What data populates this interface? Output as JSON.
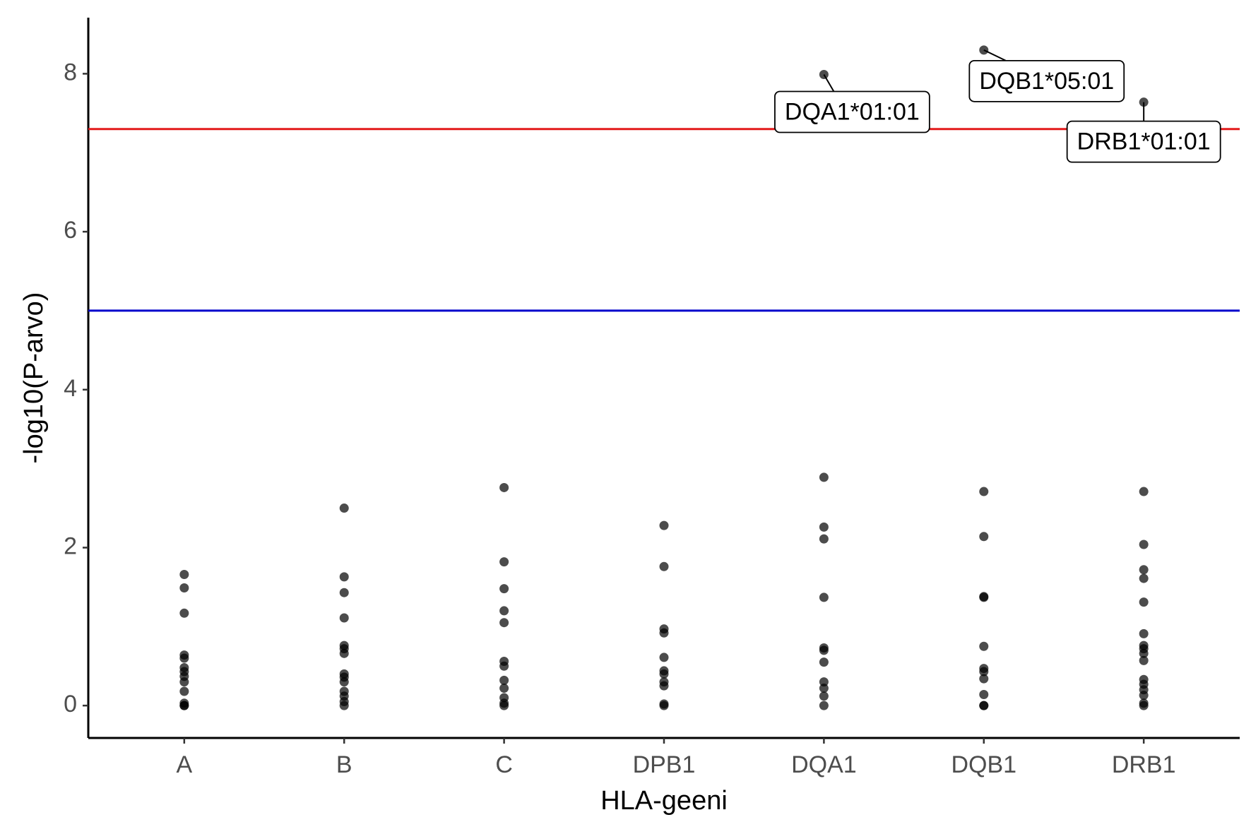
{
  "chart_data": {
    "type": "strip",
    "x_label": "HLA-geeni",
    "y_label": "-log10(P-arvo)",
    "categories": [
      "A",
      "B",
      "C",
      "DPB1",
      "DQA1",
      "DQB1",
      "DRB1"
    ],
    "values": [
      [
        1.66,
        1.49,
        1.17,
        0.64,
        0.6,
        0.48,
        0.43,
        0.37,
        0.3,
        0.18,
        0.03,
        0,
        0
      ],
      [
        2.5,
        1.63,
        1.43,
        1.11,
        0.76,
        0.72,
        0.66,
        0.4,
        0.36,
        0.3,
        0.18,
        0.12,
        0.05,
        0
      ],
      [
        2.76,
        1.82,
        1.48,
        1.2,
        1.05,
        0.56,
        0.5,
        0.32,
        0.22,
        0.1,
        0.03,
        0
      ],
      [
        2.28,
        1.76,
        0.97,
        0.92,
        0.61,
        0.44,
        0.4,
        0.3,
        0.25,
        0.02,
        0
      ],
      [
        7.99,
        2.89,
        2.26,
        2.11,
        1.37,
        0.73,
        0.7,
        0.55,
        0.3,
        0.22,
        0.12,
        0
      ],
      [
        8.3,
        2.71,
        2.14,
        1.38,
        1.37,
        0.75,
        0.47,
        0.43,
        0.34,
        0.14,
        0,
        0
      ],
      [
        7.64,
        2.71,
        2.04,
        1.72,
        1.61,
        1.31,
        0.91,
        0.76,
        0.72,
        0.66,
        0.57,
        0.33,
        0.27,
        0.2,
        0.13,
        0.03,
        0
      ]
    ],
    "color": "#000000",
    "hlines": [
      {
        "value": 7.3,
        "color": "#e31a1c"
      },
      {
        "value": 5,
        "color": "#0000cc"
      }
    ],
    "annotations": [
      {
        "label": "DQA1*01:01",
        "category": 4,
        "point": 0
      },
      {
        "label": "DQB1*05:01",
        "category": 5,
        "point": 0
      },
      {
        "label": "DRB1*01:01",
        "category": 6,
        "point": 0
      }
    ],
    "ylim": [
      -0.41,
      8.71
    ],
    "yticks": [
      0,
      2,
      4,
      6,
      8
    ]
  }
}
